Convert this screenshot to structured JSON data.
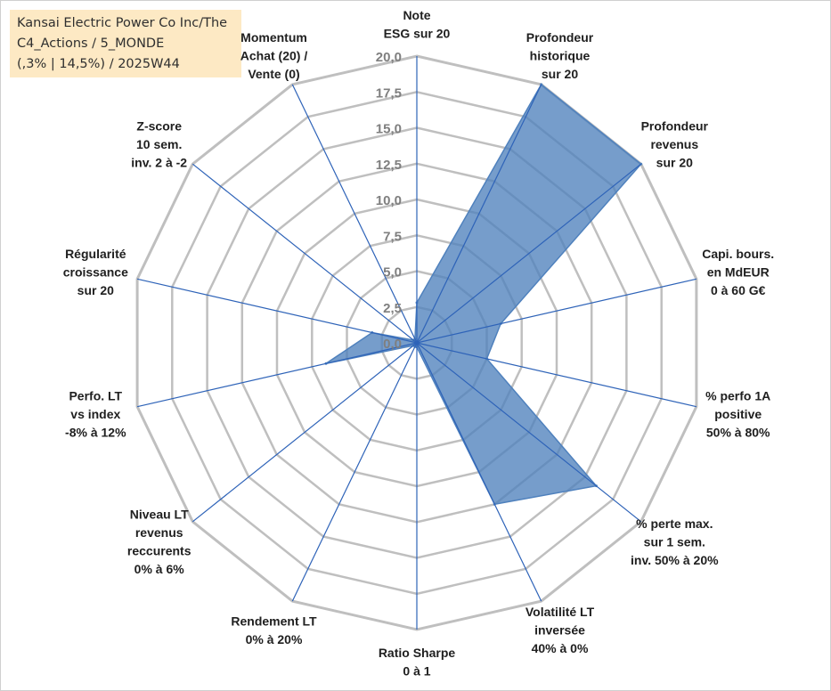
{
  "title": {
    "lines": [
      "Kansai Electric Power Co Inc/The",
      "C4_Actions / 5_MONDE",
      "(,3% | 14,5%) / 2025W44"
    ]
  },
  "chart_data": {
    "type": "radar",
    "title": "Kansai Electric Power Co Inc/The C4_Actions / 5_MONDE (,3% | 14,5%) / 2025W44",
    "rlim": [
      0,
      20
    ],
    "ticks": [
      "0,0",
      "2,5",
      "5,0",
      "7,5",
      "10,0",
      "12,5",
      "15,0",
      "17,5",
      "20,0"
    ],
    "axes": [
      {
        "label": [
          "Note",
          "ESG sur 20"
        ],
        "value": 2.8
      },
      {
        "label": [
          "Profondeur",
          "historique",
          "sur 20"
        ],
        "value": 20
      },
      {
        "label": [
          "Profondeur",
          "revenus",
          "sur 20"
        ],
        "value": 20
      },
      {
        "label": [
          "Capi. bours.",
          "en MdEUR",
          "0 à 60 G€"
        ],
        "value": 6
      },
      {
        "label": [
          "% perfo 1A",
          "positive",
          "50% à 80%"
        ],
        "value": 5
      },
      {
        "label": [
          "% perte max.",
          "sur 1 sem.",
          "inv. 50% à 20%"
        ],
        "value": 16
      },
      {
        "label": [
          "Volatilité LT",
          "inversée",
          "40% à 0%"
        ],
        "value": 12.5
      },
      {
        "label": [
          "Ratio Sharpe",
          "0 à 1"
        ],
        "value": 0.3
      },
      {
        "label": [
          "Rendement LT",
          "0% à 20%"
        ],
        "value": 0.3
      },
      {
        "label": [
          "Niveau LT",
          "revenus",
          "reccurents",
          "0% à 6%"
        ],
        "value": 0.3
      },
      {
        "label": [
          "Perfo. LT",
          "vs index",
          "-8% à 12%"
        ],
        "value": 6.5
      },
      {
        "label": [
          "Régularité",
          "croissance",
          "sur 20"
        ],
        "value": 3.2
      },
      {
        "label": [
          "Z-score",
          "10 sem.",
          "inv. 2 à -2"
        ],
        "value": 0.3
      },
      {
        "label": [
          "Momentum",
          "Achat (20) /",
          "Vente (0)"
        ],
        "value": 0.3
      }
    ],
    "series": [
      {
        "name": "Kansai Electric Power Co Inc/The",
        "color": "#4f81bd"
      }
    ],
    "colors": {
      "fill": "#4f81bd",
      "grid": "#bfbfbf",
      "spoke": "#2e63b8",
      "tick": "#7f7f7f"
    }
  }
}
